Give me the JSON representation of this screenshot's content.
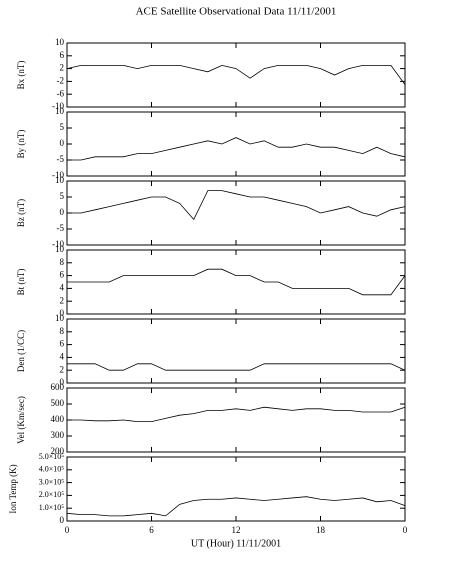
{
  "chart_data": [
    {
      "type": "line",
      "title": "ACE Satellite Observational Data   11/11/2001",
      "y_label": "Bx (nT)",
      "x": [
        0,
        1,
        2,
        3,
        4,
        5,
        6,
        7,
        8,
        9,
        10,
        11,
        12,
        13,
        14,
        15,
        16,
        17,
        18,
        19,
        20,
        21,
        22,
        23,
        24
      ],
      "values": [
        2,
        3,
        3,
        3,
        3,
        2,
        3,
        3,
        3,
        2,
        1,
        3,
        2,
        -1,
        2,
        3,
        3,
        3,
        2,
        0,
        2,
        3,
        3,
        3,
        -3
      ],
      "xlim": [
        0,
        24
      ],
      "ylim": [
        -10,
        10
      ],
      "yticks": [
        -10,
        -6,
        -2,
        2,
        6,
        10
      ],
      "color": "#000000"
    },
    {
      "type": "line",
      "y_label": "By (nT)",
      "x": [
        0,
        1,
        2,
        3,
        4,
        5,
        6,
        7,
        8,
        9,
        10,
        11,
        12,
        13,
        14,
        15,
        16,
        17,
        18,
        19,
        20,
        21,
        22,
        23,
        24
      ],
      "values": [
        -5,
        -5,
        -4,
        -4,
        -4,
        -3,
        -3,
        -2,
        -1,
        0,
        1,
        0,
        2,
        0,
        1,
        -1,
        -1,
        0,
        -1,
        -1,
        -2,
        -3,
        -1,
        -3,
        -4
      ],
      "xlim": [
        0,
        24
      ],
      "ylim": [
        -10,
        10
      ],
      "yticks": [
        -10,
        -5,
        0,
        5,
        10
      ],
      "color": "#000000"
    },
    {
      "type": "line",
      "y_label": "Bz (nT)",
      "x": [
        0,
        1,
        2,
        3,
        4,
        5,
        6,
        7,
        8,
        9,
        10,
        11,
        12,
        13,
        14,
        15,
        16,
        17,
        18,
        19,
        20,
        21,
        22,
        23,
        24
      ],
      "values": [
        0,
        0,
        1,
        2,
        3,
        4,
        5,
        5,
        3,
        -2,
        7,
        7,
        6,
        5,
        5,
        4,
        3,
        2,
        0,
        1,
        2,
        0,
        -1,
        1,
        2
      ],
      "xlim": [
        0,
        24
      ],
      "ylim": [
        -10,
        10
      ],
      "yticks": [
        -10,
        -5,
        0,
        5,
        10
      ],
      "color": "#000000"
    },
    {
      "type": "line",
      "y_label": "Bt (nT)",
      "x": [
        0,
        1,
        2,
        3,
        4,
        5,
        6,
        7,
        8,
        9,
        10,
        11,
        12,
        13,
        14,
        15,
        16,
        17,
        18,
        19,
        20,
        21,
        22,
        23,
        24
      ],
      "values": [
        5,
        5,
        5,
        5,
        6,
        6,
        6,
        6,
        6,
        6,
        7,
        7,
        6,
        6,
        5,
        5,
        4,
        4,
        4,
        4,
        4,
        3,
        3,
        3,
        6
      ],
      "xlim": [
        0,
        24
      ],
      "ylim": [
        0,
        10
      ],
      "yticks": [
        0,
        2,
        4,
        6,
        8,
        10
      ],
      "color": "#000000"
    },
    {
      "type": "line",
      "y_label": "Den (1/CC)",
      "x": [
        0,
        1,
        2,
        3,
        4,
        5,
        6,
        7,
        8,
        9,
        10,
        11,
        12,
        13,
        14,
        15,
        16,
        17,
        18,
        19,
        20,
        21,
        22,
        23,
        24
      ],
      "values": [
        3,
        3,
        3,
        2,
        2,
        3,
        3,
        2,
        2,
        2,
        2,
        2,
        2,
        2,
        3,
        3,
        3,
        3,
        3,
        3,
        3,
        3,
        3,
        3,
        2
      ],
      "xlim": [
        0,
        24
      ],
      "ylim": [
        0,
        10
      ],
      "yticks": [
        0,
        2,
        4,
        6,
        8,
        10
      ],
      "color": "#000000"
    },
    {
      "type": "line",
      "y_label": "Vel (Km/sec)",
      "x": [
        0,
        1,
        2,
        3,
        4,
        5,
        6,
        7,
        8,
        9,
        10,
        11,
        12,
        13,
        14,
        15,
        16,
        17,
        18,
        19,
        20,
        21,
        22,
        23,
        24
      ],
      "values": [
        400,
        400,
        395,
        395,
        400,
        390,
        390,
        410,
        430,
        440,
        460,
        460,
        470,
        460,
        480,
        470,
        460,
        470,
        470,
        460,
        460,
        450,
        450,
        450,
        480
      ],
      "xlim": [
        0,
        24
      ],
      "ylim": [
        200,
        600
      ],
      "yticks": [
        200,
        300,
        400,
        500,
        600
      ],
      "color": "#000000"
    },
    {
      "type": "line",
      "y_label": "Ion Temp (K)",
      "x_label": "UT (Hour)   11/11/2001",
      "x": [
        0,
        1,
        2,
        3,
        4,
        5,
        6,
        7,
        8,
        9,
        10,
        11,
        12,
        13,
        14,
        15,
        16,
        17,
        18,
        19,
        20,
        21,
        22,
        23,
        24
      ],
      "values": [
        60000,
        50000,
        50000,
        40000,
        40000,
        50000,
        60000,
        40000,
        130000,
        160000,
        170000,
        170000,
        180000,
        170000,
        160000,
        170000,
        180000,
        190000,
        170000,
        160000,
        170000,
        180000,
        150000,
        160000,
        120000
      ],
      "xlim": [
        0,
        24
      ],
      "ylim": [
        0,
        500000
      ],
      "yticks": [
        0,
        {
          "value": 100000,
          "label": "1.0×10⁵"
        },
        {
          "value": 200000,
          "label": "2.0×10⁵"
        },
        {
          "value": 300000,
          "label": "3.0×10⁵"
        },
        {
          "value": 400000,
          "label": "4.0×10⁵"
        },
        {
          "value": 500000,
          "label": "5.0×10⁵"
        }
      ],
      "xticks": [
        0,
        6,
        12,
        18,
        {
          "value": 24,
          "label": "0"
        }
      ],
      "color": "#000000"
    }
  ]
}
